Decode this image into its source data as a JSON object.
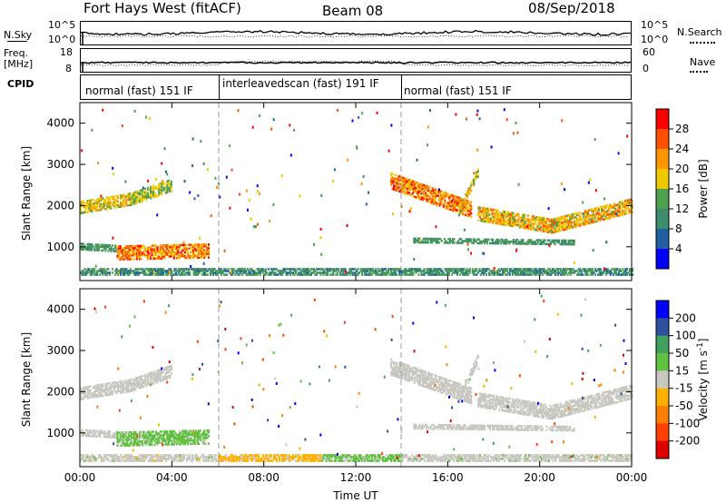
{
  "header": {
    "station": "Fort Hays West (fitACF)",
    "beam": "Beam 08",
    "date": "08/Sep/2018"
  },
  "sky_panel": {
    "left_label": "N.Sky",
    "left_ticks": [
      "10^5",
      "10^0"
    ],
    "right_label": "N.Search",
    "right_ticks": [
      "10^5",
      "10^0"
    ]
  },
  "freq_panel": {
    "left_label_1": "Freq.",
    "left_label_2": "[MHz]",
    "left_ticks": [
      "18",
      "8"
    ],
    "right_label": "Nave",
    "right_ticks": [
      "60",
      "0"
    ]
  },
  "cpid_panel": {
    "label": "CPID",
    "segments": [
      {
        "label": "normal (fast) 151 IF",
        "start": 0,
        "end": 6
      },
      {
        "label": "interleavedscan (fast) 191 IF",
        "start": 6,
        "end": 14
      },
      {
        "label": "normal (fast) 151 IF",
        "start": 14,
        "end": 24
      }
    ]
  },
  "colors": {
    "power_scale": [
      "#0000ff",
      "#2060a0",
      "#3c8c6e",
      "#50a050",
      "#f0c800",
      "#ff9600",
      "#ff5000",
      "#ff0000"
    ],
    "velocity_scale": [
      "#e00000",
      "#ff4000",
      "#ff8000",
      "#ffb000",
      "#c8c8c0",
      "#60c040",
      "#40a060",
      "#3050a0",
      "#0000ff"
    ]
  },
  "chart_data": [
    {
      "type": "heatmap",
      "title": "Power",
      "xlabel": "",
      "ylabel": "Slant Range [km]",
      "xlim": [
        0,
        24
      ],
      "ylim": [
        180,
        4500
      ],
      "x_ticks": [
        "00:00",
        "04:00",
        "08:00",
        "12:00",
        "16:00",
        "20:00",
        "00:00"
      ],
      "y_ticks": [
        1000,
        2000,
        3000,
        4000
      ],
      "colorbar": {
        "label": "Power [dB]",
        "ticks": [
          4,
          8,
          12,
          16,
          20,
          24,
          28
        ],
        "range": [
          0,
          32
        ]
      },
      "regions": [
        {
          "x": [
            0.0,
            2.2
          ],
          "y_center": [
            1950,
            2150
          ],
          "width": 300,
          "values": [
            14,
            22
          ]
        },
        {
          "x": [
            2.2,
            4.0
          ],
          "y_center": [
            2150,
            2500
          ],
          "width": 300,
          "values": [
            12,
            20
          ]
        },
        {
          "x": [
            0.0,
            1.6
          ],
          "y_center": [
            1000,
            950
          ],
          "width": 160,
          "values": [
            8,
            16
          ]
        },
        {
          "x": [
            1.6,
            5.6
          ],
          "y_center": [
            850,
            900
          ],
          "width": 350,
          "values": [
            16,
            30
          ]
        },
        {
          "x": [
            0.0,
            24.0
          ],
          "y_center": [
            380,
            380
          ],
          "width": 150,
          "values": [
            6,
            16
          ]
        },
        {
          "x": [
            13.5,
            17.0
          ],
          "y_center": [
            2600,
            1900
          ],
          "width": 400,
          "values": [
            16,
            30
          ]
        },
        {
          "x": [
            16.5,
            17.3
          ],
          "y_center": [
            1900,
            2800
          ],
          "width": 200,
          "values": [
            12,
            24
          ]
        },
        {
          "x": [
            17.3,
            20.5
          ],
          "y_center": [
            1800,
            1500
          ],
          "width": 350,
          "values": [
            14,
            26
          ]
        },
        {
          "x": [
            20.5,
            24.0
          ],
          "y_center": [
            1500,
            2000
          ],
          "width": 350,
          "values": [
            14,
            26
          ]
        },
        {
          "x": [
            14.5,
            21.5
          ],
          "y_center": [
            1150,
            1100
          ],
          "width": 120,
          "values": [
            8,
            14
          ]
        }
      ]
    },
    {
      "type": "heatmap",
      "title": "Velocity",
      "xlabel": "Time UT",
      "ylabel": "Slant Range [km]",
      "xlim": [
        0,
        24
      ],
      "ylim": [
        180,
        4500
      ],
      "x_ticks": [
        "00:00",
        "04:00",
        "08:00",
        "12:00",
        "16:00",
        "20:00",
        "00:00"
      ],
      "y_ticks": [
        1000,
        2000,
        3000,
        4000
      ],
      "colorbar": {
        "label": "Velocity [m s^-1]",
        "ticks": [
          200,
          100,
          50,
          15,
          -15,
          -50,
          -100,
          -200
        ],
        "range": [
          -250,
          250
        ]
      },
      "regions": [
        {
          "x": [
            0.0,
            2.2
          ],
          "y_center": [
            1950,
            2150
          ],
          "width": 300,
          "values": [
            -10,
            10
          ]
        },
        {
          "x": [
            2.2,
            4.0
          ],
          "y_center": [
            2150,
            2500
          ],
          "width": 300,
          "values": [
            -10,
            10
          ]
        },
        {
          "x": [
            0.0,
            1.6
          ],
          "y_center": [
            1000,
            950
          ],
          "width": 160,
          "values": [
            -10,
            10
          ]
        },
        {
          "x": [
            1.6,
            5.6
          ],
          "y_center": [
            850,
            900
          ],
          "width": 350,
          "values": [
            20,
            60
          ]
        },
        {
          "x": [
            0.0,
            6.0
          ],
          "y_center": [
            380,
            380
          ],
          "width": 150,
          "values": [
            -30,
            30
          ]
        },
        {
          "x": [
            6.0,
            10.5
          ],
          "y_center": [
            380,
            380
          ],
          "width": 150,
          "values": [
            -80,
            -20
          ]
        },
        {
          "x": [
            10.5,
            14.0
          ],
          "y_center": [
            380,
            380
          ],
          "width": 150,
          "values": [
            20,
            60
          ]
        },
        {
          "x": [
            14.0,
            24.0
          ],
          "y_center": [
            380,
            380
          ],
          "width": 150,
          "values": [
            -10,
            30
          ]
        },
        {
          "x": [
            13.5,
            17.0
          ],
          "y_center": [
            2600,
            1900
          ],
          "width": 400,
          "values": [
            -10,
            10
          ]
        },
        {
          "x": [
            16.5,
            17.3
          ],
          "y_center": [
            1900,
            2800
          ],
          "width": 200,
          "values": [
            -10,
            10
          ]
        },
        {
          "x": [
            17.3,
            20.5
          ],
          "y_center": [
            1800,
            1500
          ],
          "width": 350,
          "values": [
            -10,
            10
          ]
        },
        {
          "x": [
            20.5,
            24.0
          ],
          "y_center": [
            1500,
            2000
          ],
          "width": 350,
          "values": [
            -10,
            10
          ]
        },
        {
          "x": [
            14.5,
            21.5
          ],
          "y_center": [
            1150,
            1100
          ],
          "width": 120,
          "values": [
            -10,
            10
          ]
        }
      ]
    }
  ]
}
